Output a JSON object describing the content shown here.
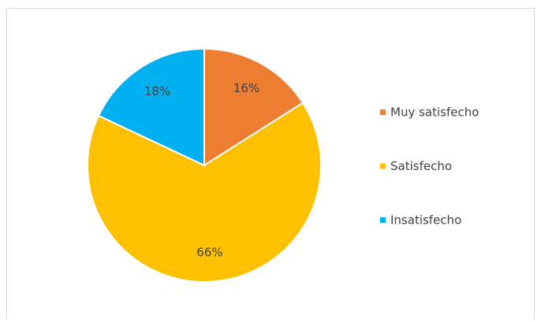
{
  "chart_data": {
    "type": "pie",
    "categories": [
      "Muy satisfecho",
      "Satisfecho",
      "Insatisfecho"
    ],
    "values": [
      16,
      66,
      18
    ],
    "value_labels": [
      "16%",
      "66%",
      "18%"
    ],
    "colors": [
      "#ED7D31",
      "#FFC000",
      "#00B0F0"
    ],
    "legend": "right"
  }
}
